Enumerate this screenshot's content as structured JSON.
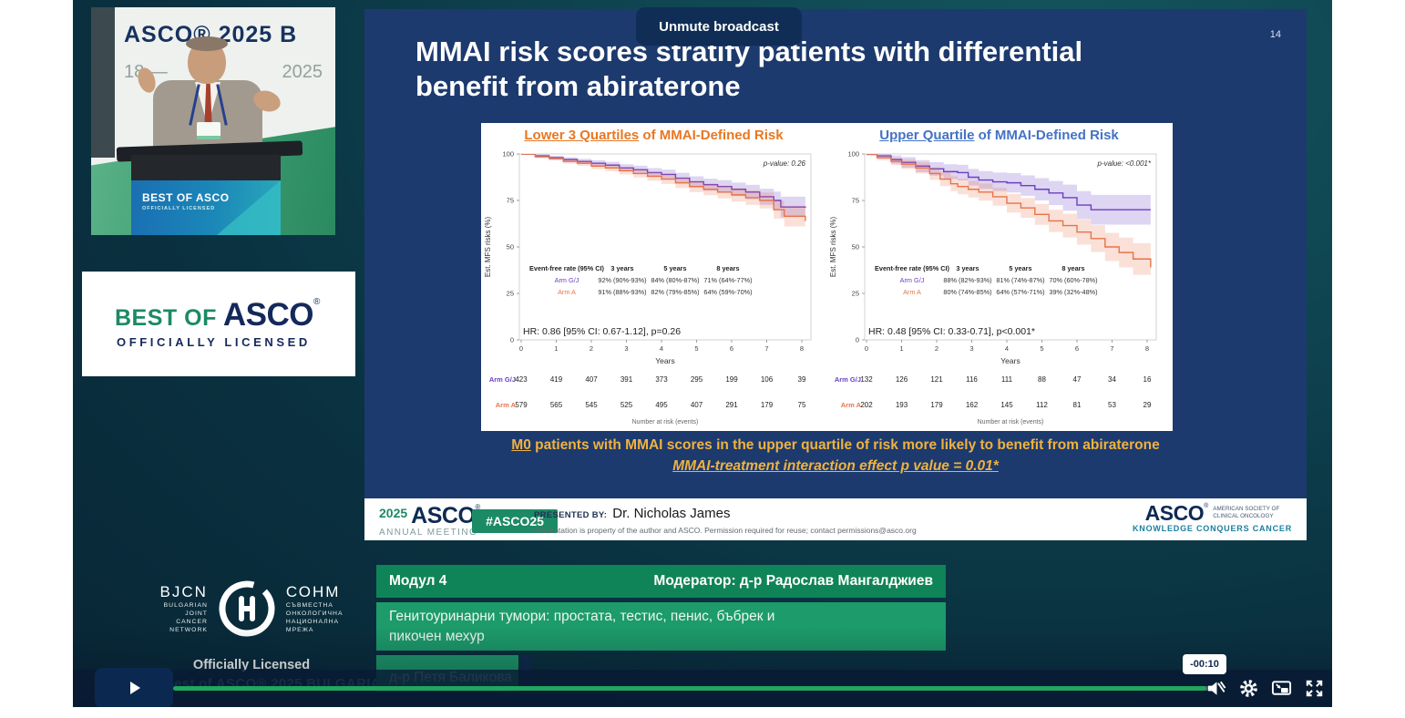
{
  "player": {
    "unmute_label": "Unmute broadcast",
    "progress": {
      "fraction": 0.993,
      "remaining_label": "-00:10"
    },
    "controls": [
      "play",
      "volume-muted",
      "settings",
      "picture-in-picture",
      "fullscreen"
    ]
  },
  "speaker_video": {
    "backdrop_title": "ASCO® 2025 B",
    "backdrop_date_left": "18 —",
    "backdrop_date_right": "2025",
    "podium_brand": "BEST OF ASCO",
    "podium_sub": "OFFICIALLY LICENSED"
  },
  "boa_card": {
    "best_of": "BEST OF",
    "asco": "ASCO",
    "reg": "®",
    "licensed": "OFFICIALLY LICENSED"
  },
  "slide": {
    "page_number": "14",
    "title_line1": "MMAI risk scores stratify patients with differential",
    "title_line2": "benefit from abiraterone",
    "highlight_prefix": "M0",
    "highlight_rest": " patients with MMAI scores in the upper quartile of risk more likely to benefit from abiraterone",
    "highlight_line2": "MMAI-treatment interaction effect p value = 0.01*",
    "footer": {
      "year": "2025",
      "asco": "ASCO",
      "reg": "®",
      "annual_meeting": "ANNUAL MEETING",
      "hashtag": "#ASCO25",
      "presented_by_label": "PRESENTED BY:",
      "presenter": "Dr. Nicholas James",
      "disclaimer": "Presentation is property of the author and ASCO. Permission required for reuse; contact permissions@asco.org",
      "asco_logo": "ASCO",
      "society_line1": "AMERICAN SOCIETY OF",
      "society_line2": "CLINICAL ONCOLOGY",
      "tagline": "KNOWLEDGE CONQUERS CANCER"
    }
  },
  "chart_data": [
    {
      "type": "line",
      "subtype": "kaplan-meier",
      "title_highlight": "Lower 3 Quartiles",
      "title_rest": " of MMAI-Defined Risk",
      "title_color": "#e87722",
      "p_value_label": "p-value: 0.26",
      "hr_label": "HR: 0.86 [95% CI: 0.67-1.12], p=0.26",
      "ylabel": "Est. MFS risks (%)",
      "xlabel": "Years",
      "xlim": [
        0,
        8.2
      ],
      "ylim": [
        0,
        100
      ],
      "xticks": [
        0,
        1,
        2,
        3,
        4,
        5,
        6,
        7,
        8
      ],
      "yticks": [
        0,
        25,
        50,
        75,
        100
      ],
      "series": [
        {
          "name": "Arm G/J",
          "color": "#6b3fc4",
          "x": [
            0,
            0.4,
            0.8,
            1.2,
            1.6,
            2.0,
            2.4,
            2.8,
            3.2,
            3.6,
            4.0,
            4.4,
            4.8,
            5.2,
            5.6,
            6.0,
            6.4,
            6.8,
            7.2,
            7.4,
            8.1
          ],
          "y": [
            100,
            99,
            98,
            97,
            96,
            95,
            94,
            92.5,
            91.5,
            90,
            89,
            87,
            85,
            83.5,
            82.5,
            81,
            79.5,
            77,
            75,
            71.5,
            71
          ],
          "band": [
            0.5,
            0.8,
            1,
            1.2,
            1.4,
            1.6,
            1.8,
            2,
            2.2,
            2.4,
            2.6,
            2.8,
            3,
            3.2,
            3.4,
            3.6,
            3.9,
            4.3,
            4.8,
            5.5,
            6
          ]
        },
        {
          "name": "Arm A",
          "color": "#e8734a",
          "x": [
            0,
            0.4,
            0.8,
            1.2,
            1.6,
            2.0,
            2.4,
            2.8,
            3.2,
            3.6,
            4.0,
            4.4,
            4.8,
            5.2,
            5.6,
            6.0,
            6.4,
            6.8,
            7.2,
            7.5,
            8.1
          ],
          "y": [
            100,
            98.5,
            97.5,
            96,
            95,
            93.5,
            92.5,
            91,
            89.5,
            88,
            86.5,
            84.5,
            82.5,
            81,
            79.5,
            78,
            76.5,
            75,
            70,
            66.5,
            64
          ],
          "band": [
            0.5,
            0.8,
            1,
            1.2,
            1.4,
            1.6,
            1.8,
            2,
            2.2,
            2.4,
            2.6,
            2.8,
            3,
            3.2,
            3.4,
            3.6,
            3.9,
            4.3,
            4.8,
            5.5,
            6
          ]
        }
      ],
      "table": {
        "header": [
          "Event-free rate (95% CI)",
          "3 years",
          "5 years",
          "8 years"
        ],
        "rows": [
          {
            "name": "Arm G/J",
            "color": "#6b3fc4",
            "values": [
              "92% (90%-93%)",
              "84% (80%-87%)",
              "71% (64%-77%)"
            ]
          },
          {
            "name": "Arm A",
            "color": "#e8734a",
            "values": [
              "91% (88%-93%)",
              "82% (79%-85%)",
              "64% (59%-70%)"
            ]
          }
        ]
      },
      "at_risk": {
        "label": "Number at risk (events)",
        "rows": [
          {
            "name": "Arm G/J",
            "color": "#6b3fc4",
            "values": [
              423,
              419,
              407,
              391,
              373,
              295,
              199,
              106,
              39
            ]
          },
          {
            "name": "Arm A",
            "color": "#e8734a",
            "values": [
              579,
              565,
              545,
              525,
              495,
              407,
              291,
              179,
              75
            ]
          }
        ]
      }
    },
    {
      "type": "line",
      "subtype": "kaplan-meier",
      "title_highlight": "Upper Quartile",
      "title_rest": " of MMAI-Defined Risk",
      "title_color": "#4472c4",
      "p_value_label": "p-value: <0.001*",
      "hr_label": "HR: 0.48 [95% CI: 0.33-0.71], p<0.001*",
      "ylabel": "Est. MFS risks (%)",
      "xlabel": "Years",
      "xlim": [
        0,
        8.2
      ],
      "ylim": [
        0,
        100
      ],
      "xticks": [
        0,
        1,
        2,
        3,
        4,
        5,
        6,
        7,
        8
      ],
      "yticks": [
        0,
        25,
        50,
        75,
        100
      ],
      "series": [
        {
          "name": "Arm G/J",
          "color": "#6b3fc4",
          "x": [
            0,
            0.3,
            0.7,
            1.0,
            1.4,
            1.8,
            2.2,
            2.6,
            2.9,
            3.2,
            3.6,
            4.0,
            4.4,
            4.8,
            5.2,
            5.6,
            6.0,
            6.4,
            8.1
          ],
          "y": [
            100,
            99,
            97,
            95.5,
            93.5,
            92,
            90.5,
            90,
            87.5,
            86,
            85,
            84.5,
            83,
            81,
            79,
            76.5,
            72.5,
            70,
            70
          ],
          "band": [
            0.8,
            1.5,
            2.2,
            2.8,
            3.2,
            3.6,
            4,
            4.2,
            4.5,
            4.8,
            5,
            5.2,
            5.5,
            6,
            6.5,
            7,
            7.5,
            8,
            8
          ]
        },
        {
          "name": "Arm A",
          "color": "#e8734a",
          "x": [
            0,
            0.3,
            0.7,
            1.0,
            1.4,
            1.8,
            2.1,
            2.4,
            2.6,
            2.9,
            3.2,
            3.6,
            4.0,
            4.4,
            4.8,
            5.2,
            5.6,
            6.0,
            6.4,
            6.8,
            7.2,
            7.6,
            8.1
          ],
          "y": [
            100,
            98,
            96,
            94.5,
            92.5,
            89.5,
            86.5,
            84,
            82.5,
            81,
            79.5,
            77,
            73.5,
            71,
            67.5,
            64,
            61.5,
            58,
            54.5,
            50,
            47,
            43.5,
            39
          ],
          "band": [
            0.8,
            1.4,
            2,
            2.5,
            3,
            3.4,
            3.8,
            4,
            4.2,
            4.4,
            4.6,
            4.8,
            5,
            5.3,
            5.6,
            6,
            6.4,
            6.8,
            7.2,
            7.6,
            8,
            8.5,
            9
          ]
        }
      ],
      "table": {
        "header": [
          "Event-free rate (95% CI)",
          "3 years",
          "5 years",
          "8 years"
        ],
        "rows": [
          {
            "name": "Arm G/J",
            "color": "#6b3fc4",
            "values": [
              "88% (82%-93%)",
              "81% (74%-87%)",
              "70% (60%-78%)"
            ]
          },
          {
            "name": "Arm A",
            "color": "#e8734a",
            "values": [
              "80% (74%-85%)",
              "64% (57%-71%)",
              "39% (32%-48%)"
            ]
          }
        ]
      },
      "at_risk": {
        "label": "Number at risk (events)",
        "rows": [
          {
            "name": "Arm G/J",
            "color": "#6b3fc4",
            "values": [
              132,
              126,
              121,
              116,
              111,
              88,
              47,
              34,
              16
            ]
          },
          {
            "name": "Arm A",
            "color": "#e8734a",
            "values": [
              202,
              193,
              179,
              162,
              145,
              112,
              81,
              53,
              29
            ]
          }
        ]
      }
    }
  ],
  "modules": {
    "module_label": "Модул 4",
    "moderator": "Модератор: д-р Радослав Мангалджиев",
    "topic": "Генитоуринарни тумори: простата, тестис, пенис, бъбрек и пикочен мехур",
    "speaker_small": "д-р Петя Баликова"
  },
  "bjcn": {
    "abbr_left": "BJCN",
    "left_lines": [
      "BULGARIAN",
      "JOINT",
      "CANCER",
      "NETWORK"
    ],
    "abbr_right": "СОНМ",
    "right_lines": [
      "СЪВМЕСТНА",
      "ОНКОЛОГИЧНА",
      "НАЦИОНАЛНА",
      "МРЕЖА"
    ],
    "officially_licensed": "Officially Licensed",
    "watermark": "Best of ASCO® 2025 BULGARIA"
  },
  "colors": {
    "slide_bg": "#1c3a6e",
    "gold_text": "#f0b23e",
    "green_box_dark": "#0f8458",
    "green_box_light": "#1d9b6a",
    "progress_green": "#21a55f",
    "arm_gj": "#6b3fc4",
    "arm_a": "#e8734a",
    "left_title": "#e87722",
    "right_title": "#4472c4",
    "asco_green": "#1c8a64",
    "asco_navy": "#0e2a52"
  }
}
